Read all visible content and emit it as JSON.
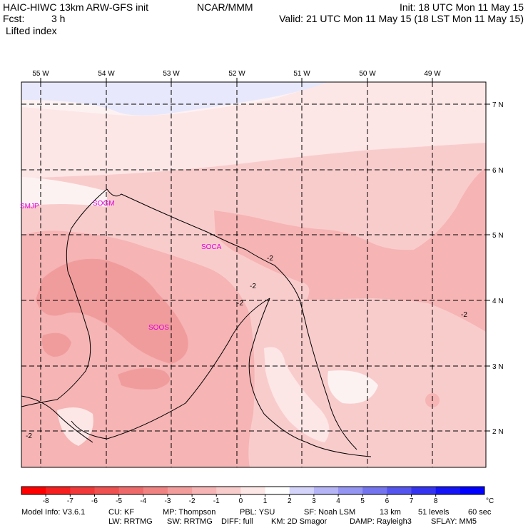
{
  "header": {
    "model": "HAIC-HIWC 13km ARW-GFS init",
    "org": "NCAR/MMM",
    "fcst_label": "Fcst:",
    "fcst_value": "3 h",
    "field": "Lifted index",
    "init": "Init: 18 UTC Mon 11 May 15",
    "valid": "Valid: 21 UTC Mon 11 May 15 (18 LST Mon 11 May 15)"
  },
  "map": {
    "lon_labels": [
      "55 W",
      "54 W",
      "53 W",
      "52 W",
      "51 W",
      "50 W",
      "49 W"
    ],
    "lat_labels": [
      "7 N",
      "6 N",
      "5 N",
      "4 N",
      "3 N",
      "2 N"
    ],
    "stations": [
      "SMJP",
      "SOGM",
      "SOCA",
      "SOOS"
    ],
    "contour_labels": [
      "-2",
      "-2",
      "-2",
      "-2",
      "-2"
    ],
    "colors": {
      "neg4": "#f19c9c",
      "neg3": "#f6b4b4",
      "neg2": "#f9cccc",
      "neg1": "#fde6e6",
      "pos0": "#fdf2f2",
      "pos1": "#e8e8fc"
    }
  },
  "colorbar": {
    "ticks": [
      "-8",
      "-7",
      "-6",
      "-5",
      "-4",
      "-3",
      "-2",
      "-1",
      "0",
      "1",
      "2",
      "3",
      "4",
      "5",
      "6",
      "7",
      "8"
    ],
    "unit": "°C",
    "colors": [
      "#ff0000",
      "#f61e1e",
      "#f23838",
      "#ef5050",
      "#ee6a6a",
      "#f08282",
      "#f39c9c",
      "#f6b4b4",
      "#f9cccc",
      "#fde6e6",
      "#ffffff",
      "#d4d4fa",
      "#b4b4f6",
      "#9494f2",
      "#7474ee",
      "#5454ee",
      "#3434f0",
      "#1414f6",
      "#0000ff"
    ]
  },
  "footer": {
    "line1": [
      "Model Info: V3.6.1",
      "CU: KF",
      "MP: Thompson",
      "PBL: YSU",
      "SF: Noah LSM",
      "13 km",
      "51 levels",
      "60 sec"
    ],
    "line2": [
      "LW: RRTMG",
      "SW: RRTMG",
      "DIFF: full",
      "KM: 2D Smagor",
      "DAMP: Rayleigh3",
      "SFLAY: MM5"
    ]
  }
}
